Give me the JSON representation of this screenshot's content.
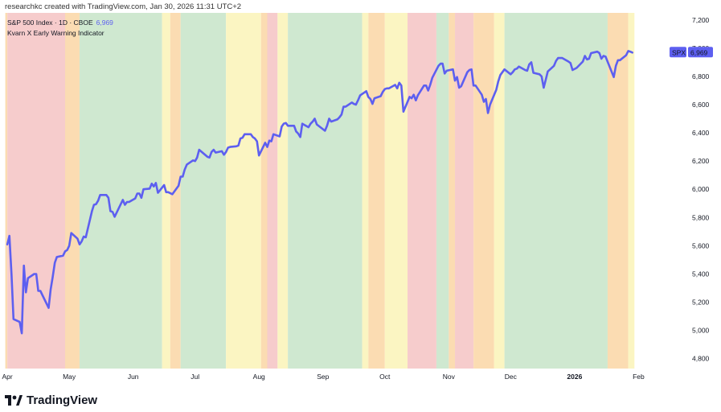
{
  "header": {
    "credit": "researchkc created with TradingView.com, Jan 30, 2026 11:31 UTC+2"
  },
  "legend": {
    "symbol_line": "S&P 500 Index · 1D · CBOE",
    "last_value": "6,969",
    "indicator_name": "Kvarn X Early Warning Indicator"
  },
  "price_label": {
    "symbol": "SPX",
    "value": "6,969"
  },
  "colors": {
    "line": "#5d5ff0",
    "green": "#cfe8d0",
    "yellow": "#fbf5c2",
    "orange": "#fbdcb2",
    "red": "#f6cccc",
    "label_bg": "#5d5ff0"
  },
  "footer": {
    "brand": "TradingView",
    "logo_icon": "tradingview-logo-icon"
  },
  "chart_data": {
    "type": "line",
    "title": "S&P 500 Index · 1D · CBOE",
    "xlabel": "",
    "ylabel": "",
    "ylim": [
      4730,
      7250
    ],
    "y_ticks": [
      "7,200",
      "7,000",
      "6,800",
      "6,600",
      "6,400",
      "6,200",
      "6,000",
      "5,800",
      "5,600",
      "5,400",
      "5,200",
      "5,000",
      "4,800"
    ],
    "y_tick_values": [
      7200,
      7000,
      6800,
      6600,
      6400,
      6200,
      6000,
      5800,
      5600,
      5400,
      5200,
      5000,
      4800
    ],
    "x_ticks": [
      {
        "label": "Apr",
        "date": "2025-04-01",
        "bold": false
      },
      {
        "label": "May",
        "date": "2025-05-01",
        "bold": false
      },
      {
        "label": "Jun",
        "date": "2025-06-01",
        "bold": false
      },
      {
        "label": "Jul",
        "date": "2025-07-01",
        "bold": false
      },
      {
        "label": "Aug",
        "date": "2025-08-01",
        "bold": false
      },
      {
        "label": "Sep",
        "date": "2025-09-01",
        "bold": false
      },
      {
        "label": "Oct",
        "date": "2025-10-01",
        "bold": false
      },
      {
        "label": "Nov",
        "date": "2025-11-01",
        "bold": false
      },
      {
        "label": "Dec",
        "date": "2025-12-01",
        "bold": false
      },
      {
        "label": "2026",
        "date": "2026-01-01",
        "bold": true
      },
      {
        "label": "Feb",
        "date": "2026-02-01",
        "bold": false
      }
    ],
    "xlim": [
      "2025-04-01",
      "2026-02-01"
    ],
    "series": [
      {
        "name": "SPX",
        "points": [
          [
            "2025-04-01",
            5610
          ],
          [
            "2025-04-02",
            5670
          ],
          [
            "2025-04-03",
            5400
          ],
          [
            "2025-04-04",
            5080
          ],
          [
            "2025-04-07",
            5060
          ],
          [
            "2025-04-08",
            4980
          ],
          [
            "2025-04-09",
            5460
          ],
          [
            "2025-04-10",
            5270
          ],
          [
            "2025-04-11",
            5370
          ],
          [
            "2025-04-14",
            5400
          ],
          [
            "2025-04-15",
            5400
          ],
          [
            "2025-04-16",
            5280
          ],
          [
            "2025-04-17",
            5280
          ],
          [
            "2025-04-21",
            5160
          ],
          [
            "2025-04-22",
            5290
          ],
          [
            "2025-04-23",
            5380
          ],
          [
            "2025-04-24",
            5480
          ],
          [
            "2025-04-25",
            5520
          ],
          [
            "2025-04-28",
            5530
          ],
          [
            "2025-04-29",
            5560
          ],
          [
            "2025-04-30",
            5570
          ],
          [
            "2025-05-01",
            5600
          ],
          [
            "2025-05-02",
            5690
          ],
          [
            "2025-05-05",
            5650
          ],
          [
            "2025-05-06",
            5610
          ],
          [
            "2025-05-07",
            5630
          ],
          [
            "2025-05-08",
            5665
          ],
          [
            "2025-05-09",
            5660
          ],
          [
            "2025-05-12",
            5845
          ],
          [
            "2025-05-13",
            5890
          ],
          [
            "2025-05-14",
            5895
          ],
          [
            "2025-05-15",
            5920
          ],
          [
            "2025-05-16",
            5960
          ],
          [
            "2025-05-19",
            5960
          ],
          [
            "2025-05-20",
            5940
          ],
          [
            "2025-05-21",
            5845
          ],
          [
            "2025-05-22",
            5840
          ],
          [
            "2025-05-23",
            5805
          ],
          [
            "2025-05-27",
            5925
          ],
          [
            "2025-05-28",
            5890
          ],
          [
            "2025-05-29",
            5910
          ],
          [
            "2025-05-30",
            5910
          ],
          [
            "2025-06-02",
            5935
          ],
          [
            "2025-06-03",
            5970
          ],
          [
            "2025-06-04",
            5970
          ],
          [
            "2025-06-05",
            5940
          ],
          [
            "2025-06-06",
            6000
          ],
          [
            "2025-06-09",
            6005
          ],
          [
            "2025-06-10",
            6040
          ],
          [
            "2025-06-11",
            6020
          ],
          [
            "2025-06-12",
            6045
          ],
          [
            "2025-06-13",
            5975
          ],
          [
            "2025-06-16",
            6030
          ],
          [
            "2025-06-17",
            5980
          ],
          [
            "2025-06-18",
            5980
          ],
          [
            "2025-06-20",
            5965
          ],
          [
            "2025-06-23",
            6025
          ],
          [
            "2025-06-24",
            6090
          ],
          [
            "2025-06-25",
            6090
          ],
          [
            "2025-06-26",
            6140
          ],
          [
            "2025-06-27",
            6175
          ],
          [
            "2025-06-30",
            6205
          ],
          [
            "2025-07-01",
            6200
          ],
          [
            "2025-07-02",
            6225
          ],
          [
            "2025-07-03",
            6280
          ],
          [
            "2025-07-07",
            6230
          ],
          [
            "2025-07-08",
            6225
          ],
          [
            "2025-07-09",
            6265
          ],
          [
            "2025-07-10",
            6280
          ],
          [
            "2025-07-11",
            6260
          ],
          [
            "2025-07-14",
            6270
          ],
          [
            "2025-07-15",
            6245
          ],
          [
            "2025-07-16",
            6265
          ],
          [
            "2025-07-17",
            6295
          ],
          [
            "2025-07-18",
            6300
          ],
          [
            "2025-07-21",
            6305
          ],
          [
            "2025-07-22",
            6310
          ],
          [
            "2025-07-23",
            6360
          ],
          [
            "2025-07-24",
            6365
          ],
          [
            "2025-07-25",
            6390
          ],
          [
            "2025-07-28",
            6390
          ],
          [
            "2025-07-29",
            6370
          ],
          [
            "2025-07-30",
            6360
          ],
          [
            "2025-07-31",
            6340
          ],
          [
            "2025-08-01",
            6240
          ],
          [
            "2025-08-04",
            6330
          ],
          [
            "2025-08-05",
            6300
          ],
          [
            "2025-08-06",
            6345
          ],
          [
            "2025-08-07",
            6340
          ],
          [
            "2025-08-08",
            6390
          ],
          [
            "2025-08-11",
            6375
          ],
          [
            "2025-08-12",
            6445
          ],
          [
            "2025-08-13",
            6465
          ],
          [
            "2025-08-14",
            6470
          ],
          [
            "2025-08-15",
            6450
          ],
          [
            "2025-08-18",
            6450
          ],
          [
            "2025-08-19",
            6410
          ],
          [
            "2025-08-20",
            6395
          ],
          [
            "2025-08-21",
            6370
          ],
          [
            "2025-08-22",
            6465
          ],
          [
            "2025-08-25",
            6440
          ],
          [
            "2025-08-26",
            6465
          ],
          [
            "2025-08-27",
            6480
          ],
          [
            "2025-08-28",
            6500
          ],
          [
            "2025-08-29",
            6460
          ],
          [
            "2025-09-02",
            6415
          ],
          [
            "2025-09-03",
            6450
          ],
          [
            "2025-09-04",
            6500
          ],
          [
            "2025-09-05",
            6480
          ],
          [
            "2025-09-08",
            6495
          ],
          [
            "2025-09-09",
            6510
          ],
          [
            "2025-09-10",
            6530
          ],
          [
            "2025-09-11",
            6585
          ],
          [
            "2025-09-12",
            6585
          ],
          [
            "2025-09-15",
            6615
          ],
          [
            "2025-09-16",
            6605
          ],
          [
            "2025-09-17",
            6600
          ],
          [
            "2025-09-18",
            6630
          ],
          [
            "2025-09-19",
            6665
          ],
          [
            "2025-09-22",
            6695
          ],
          [
            "2025-09-23",
            6655
          ],
          [
            "2025-09-24",
            6640
          ],
          [
            "2025-09-25",
            6605
          ],
          [
            "2025-09-26",
            6645
          ],
          [
            "2025-09-29",
            6660
          ],
          [
            "2025-09-30",
            6690
          ],
          [
            "2025-10-01",
            6710
          ],
          [
            "2025-10-02",
            6715
          ],
          [
            "2025-10-03",
            6715
          ],
          [
            "2025-10-06",
            6740
          ],
          [
            "2025-10-07",
            6715
          ],
          [
            "2025-10-08",
            6755
          ],
          [
            "2025-10-09",
            6735
          ],
          [
            "2025-10-10",
            6550
          ],
          [
            "2025-10-13",
            6655
          ],
          [
            "2025-10-14",
            6645
          ],
          [
            "2025-10-15",
            6670
          ],
          [
            "2025-10-16",
            6630
          ],
          [
            "2025-10-17",
            6665
          ],
          [
            "2025-10-20",
            6735
          ],
          [
            "2025-10-21",
            6735
          ],
          [
            "2025-10-22",
            6700
          ],
          [
            "2025-10-23",
            6740
          ],
          [
            "2025-10-24",
            6790
          ],
          [
            "2025-10-27",
            6875
          ],
          [
            "2025-10-28",
            6890
          ],
          [
            "2025-10-29",
            6890
          ],
          [
            "2025-10-30",
            6820
          ],
          [
            "2025-10-31",
            6840
          ],
          [
            "2025-11-03",
            6850
          ],
          [
            "2025-11-04",
            6770
          ],
          [
            "2025-11-05",
            6795
          ],
          [
            "2025-11-06",
            6720
          ],
          [
            "2025-11-07",
            6730
          ],
          [
            "2025-11-10",
            6830
          ],
          [
            "2025-11-11",
            6845
          ],
          [
            "2025-11-12",
            6850
          ],
          [
            "2025-11-13",
            6735
          ],
          [
            "2025-11-14",
            6735
          ],
          [
            "2025-11-17",
            6670
          ],
          [
            "2025-11-18",
            6620
          ],
          [
            "2025-11-19",
            6640
          ],
          [
            "2025-11-20",
            6540
          ],
          [
            "2025-11-21",
            6600
          ],
          [
            "2025-11-24",
            6705
          ],
          [
            "2025-11-25",
            6765
          ],
          [
            "2025-11-26",
            6810
          ],
          [
            "2025-11-28",
            6850
          ],
          [
            "2025-12-01",
            6815
          ],
          [
            "2025-12-02",
            6830
          ],
          [
            "2025-12-03",
            6850
          ],
          [
            "2025-12-04",
            6855
          ],
          [
            "2025-12-05",
            6870
          ],
          [
            "2025-12-08",
            6845
          ],
          [
            "2025-12-09",
            6840
          ],
          [
            "2025-12-10",
            6885
          ],
          [
            "2025-12-11",
            6900
          ],
          [
            "2025-12-12",
            6825
          ],
          [
            "2025-12-15",
            6815
          ],
          [
            "2025-12-16",
            6800
          ],
          [
            "2025-12-17",
            6720
          ],
          [
            "2025-12-18",
            6775
          ],
          [
            "2025-12-19",
            6835
          ],
          [
            "2025-12-22",
            6875
          ],
          [
            "2025-12-23",
            6910
          ],
          [
            "2025-12-24",
            6930
          ],
          [
            "2025-12-26",
            6930
          ],
          [
            "2025-12-29",
            6905
          ],
          [
            "2025-12-30",
            6895
          ],
          [
            "2025-12-31",
            6845
          ],
          [
            "2026-01-02",
            6860
          ],
          [
            "2026-01-05",
            6905
          ],
          [
            "2026-01-06",
            6945
          ],
          [
            "2026-01-07",
            6920
          ],
          [
            "2026-01-08",
            6925
          ],
          [
            "2026-01-09",
            6965
          ],
          [
            "2026-01-12",
            6975
          ],
          [
            "2026-01-13",
            6965
          ],
          [
            "2026-01-14",
            6925
          ],
          [
            "2026-01-15",
            6945
          ],
          [
            "2026-01-16",
            6940
          ],
          [
            "2026-01-20",
            6795
          ],
          [
            "2026-01-21",
            6875
          ],
          [
            "2026-01-22",
            6915
          ],
          [
            "2026-01-23",
            6915
          ],
          [
            "2026-01-26",
            6950
          ],
          [
            "2026-01-27",
            6980
          ],
          [
            "2026-01-28",
            6975
          ],
          [
            "2026-01-29",
            6969
          ]
        ]
      }
    ],
    "regimes": [
      {
        "start": "2025-03-31",
        "end": "2025-04-01",
        "level": "orange"
      },
      {
        "start": "2025-04-01",
        "end": "2025-04-29",
        "level": "red"
      },
      {
        "start": "2025-04-29",
        "end": "2025-05-06",
        "level": "orange"
      },
      {
        "start": "2025-05-06",
        "end": "2025-06-15",
        "level": "green"
      },
      {
        "start": "2025-06-15",
        "end": "2025-06-19",
        "level": "yellow"
      },
      {
        "start": "2025-06-19",
        "end": "2025-06-24",
        "level": "orange"
      },
      {
        "start": "2025-06-24",
        "end": "2025-07-16",
        "level": "green"
      },
      {
        "start": "2025-07-16",
        "end": "2025-08-02",
        "level": "yellow"
      },
      {
        "start": "2025-08-02",
        "end": "2025-08-05",
        "level": "orange"
      },
      {
        "start": "2025-08-05",
        "end": "2025-08-10",
        "level": "red"
      },
      {
        "start": "2025-08-10",
        "end": "2025-08-15",
        "level": "yellow"
      },
      {
        "start": "2025-08-15",
        "end": "2025-09-20",
        "level": "green"
      },
      {
        "start": "2025-09-20",
        "end": "2025-09-23",
        "level": "yellow"
      },
      {
        "start": "2025-09-23",
        "end": "2025-10-01",
        "level": "orange"
      },
      {
        "start": "2025-10-01",
        "end": "2025-10-12",
        "level": "yellow"
      },
      {
        "start": "2025-10-12",
        "end": "2025-10-26",
        "level": "red"
      },
      {
        "start": "2025-10-26",
        "end": "2025-11-01",
        "level": "green"
      },
      {
        "start": "2025-11-01",
        "end": "2025-11-04",
        "level": "orange"
      },
      {
        "start": "2025-11-04",
        "end": "2025-11-13",
        "level": "red"
      },
      {
        "start": "2025-11-13",
        "end": "2025-11-23",
        "level": "orange"
      },
      {
        "start": "2025-11-23",
        "end": "2025-11-28",
        "level": "yellow"
      },
      {
        "start": "2025-11-28",
        "end": "2026-01-17",
        "level": "green"
      },
      {
        "start": "2026-01-17",
        "end": "2026-01-27",
        "level": "orange"
      },
      {
        "start": "2026-01-27",
        "end": "2026-01-30",
        "level": "yellow"
      }
    ]
  }
}
